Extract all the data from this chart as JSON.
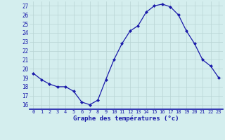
{
  "hours": [
    0,
    1,
    2,
    3,
    4,
    5,
    6,
    7,
    8,
    9,
    10,
    11,
    12,
    13,
    14,
    15,
    16,
    17,
    18,
    19,
    20,
    21,
    22,
    23
  ],
  "temps": [
    19.5,
    18.8,
    18.3,
    18.0,
    18.0,
    17.5,
    16.3,
    16.0,
    16.5,
    18.8,
    21.0,
    22.8,
    24.2,
    24.8,
    26.3,
    27.0,
    27.2,
    26.9,
    26.0,
    24.2,
    22.8,
    21.0,
    20.3,
    19.0
  ],
  "line_color": "#1a1aaa",
  "marker": "D",
  "marker_size": 2.0,
  "bg_color": "#d4eeee",
  "grid_color": "#b8d4d4",
  "xlabel": "Graphe des températures (°c)",
  "xlabel_color": "#1a1aaa",
  "ylabel_ticks": [
    16,
    17,
    18,
    19,
    20,
    21,
    22,
    23,
    24,
    25,
    26,
    27
  ],
  "xlim": [
    -0.5,
    23.5
  ],
  "ylim": [
    15.5,
    27.5
  ],
  "tick_color": "#1a1aaa",
  "spine_color": "#1a1aaa",
  "ytick_fontsize": 5.5,
  "xtick_fontsize": 5.0,
  "xlabel_fontsize": 6.5
}
